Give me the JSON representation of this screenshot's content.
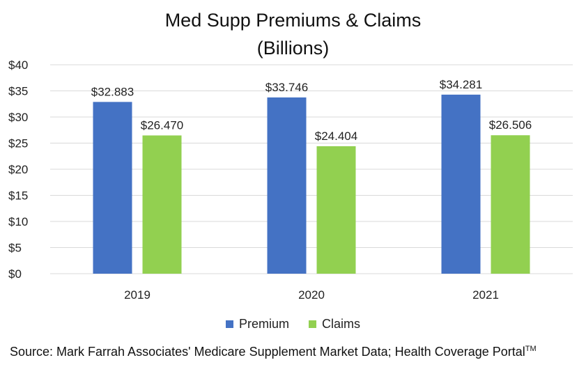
{
  "chart_data": {
    "type": "bar",
    "title": "Med Supp Premiums & Claims",
    "subtitle": "(Billions)",
    "categories": [
      "2019",
      "2020",
      "2021"
    ],
    "series": [
      {
        "name": "Premium",
        "values": [
          32.883,
          33.746,
          34.281
        ],
        "labels": [
          "$32.883",
          "$33.746",
          "$34.281"
        ],
        "color": "#4472C4"
      },
      {
        "name": "Claims",
        "values": [
          26.47,
          24.404,
          26.506
        ],
        "labels": [
          "$26.470",
          "$24.404",
          "$26.506"
        ],
        "color": "#92D050"
      }
    ],
    "ylim": [
      0,
      40
    ],
    "yticks": [
      0,
      5,
      10,
      15,
      20,
      25,
      30,
      35,
      40
    ],
    "ytick_labels": [
      "$0",
      "$5",
      "$10",
      "$15",
      "$20",
      "$25",
      "$30",
      "$35",
      "$40"
    ],
    "grid": true,
    "legend_position": "bottom",
    "xlabel": "",
    "ylabel": ""
  },
  "source": {
    "text": "Source: Mark Farrah Associates' Medicare Supplement Market Data; Health Coverage Portal",
    "trademark": "TM"
  }
}
